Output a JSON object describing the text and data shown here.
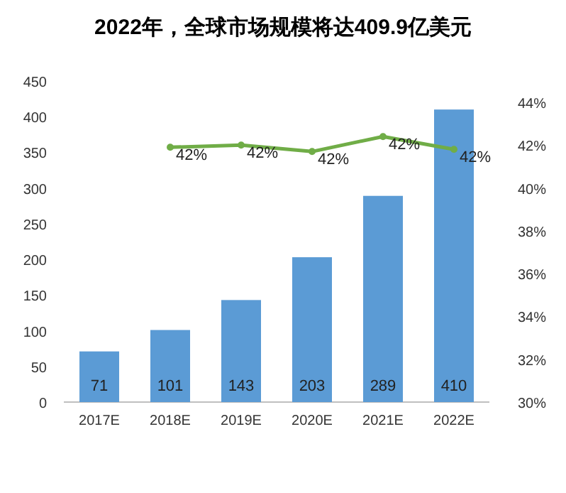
{
  "chart_data": {
    "type": "bar",
    "title": "2022年，全球市场规模将达409.9亿美元",
    "categories": [
      "2017E",
      "2018E",
      "2019E",
      "2020E",
      "2021E",
      "2022E"
    ],
    "series": [
      {
        "color": "#5b9bd5",
        "values": [
          71,
          101,
          143,
          203,
          289,
          410
        ],
        "data_labels": true
      },
      {
        "type": "line",
        "axis": "y2",
        "color": "#70ad47",
        "marker": "circle",
        "values": [
          null,
          41.9,
          42.0,
          41.7,
          42.4,
          41.8
        ],
        "value_labels": [
          null,
          "42%",
          "42%",
          "42%",
          "42%",
          "42%"
        ]
      }
    ],
    "ylim": [
      0,
      450
    ],
    "yticks": [
      0,
      50,
      100,
      150,
      200,
      250,
      300,
      350,
      400,
      450
    ],
    "y2lim": [
      30,
      44
    ],
    "y2ticks": [
      {
        "value": 30,
        "label": "30%"
      },
      {
        "value": 32,
        "label": "32%"
      },
      {
        "value": 34,
        "label": "34%"
      },
      {
        "value": 36,
        "label": "36%"
      },
      {
        "value": 38,
        "label": "38%"
      },
      {
        "value": 40,
        "label": "40%"
      },
      {
        "value": 42,
        "label": "42%"
      },
      {
        "value": 44,
        "label": "44%"
      }
    ],
    "grid": false
  }
}
